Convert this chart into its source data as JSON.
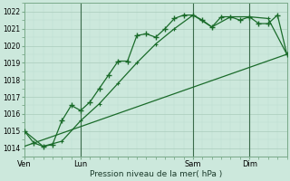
{
  "bg_color": "#cce8dc",
  "grid_color_major": "#aaccbc",
  "grid_color_minor": "#bbddd0",
  "line_color": "#1a6b2a",
  "title": "Pression niveau de la mer( hPa )",
  "ylim": [
    1013.5,
    1022.5
  ],
  "yticks": [
    1014,
    1015,
    1016,
    1017,
    1018,
    1019,
    1020,
    1021,
    1022
  ],
  "day_labels": [
    "Ven",
    "Lun",
    "Sam",
    "Dim"
  ],
  "day_positions": [
    0,
    3,
    9,
    12
  ],
  "vline_positions": [
    3,
    9,
    12
  ],
  "xlim": [
    0,
    14
  ],
  "series1_x": [
    0,
    0.5,
    1,
    1.5,
    2,
    2.5,
    3,
    3.5,
    4,
    4.5,
    5,
    5.5,
    6,
    6.5,
    7,
    7.5,
    8,
    8.5,
    9,
    9.5,
    10,
    10.5,
    11,
    11.5,
    12,
    12.5,
    13,
    13.5,
    14
  ],
  "series1_y": [
    1015.0,
    1014.3,
    1014.1,
    1014.2,
    1015.6,
    1016.5,
    1016.2,
    1016.7,
    1017.5,
    1018.3,
    1019.1,
    1019.1,
    1020.6,
    1020.7,
    1020.5,
    1021.0,
    1021.6,
    1021.8,
    1021.8,
    1021.5,
    1021.1,
    1021.7,
    1021.7,
    1021.5,
    1021.7,
    1021.3,
    1021.3,
    1021.8,
    1019.5
  ],
  "series2_x": [
    0,
    1,
    2,
    3,
    4,
    5,
    6,
    7,
    8,
    9,
    10,
    11,
    12,
    13,
    14
  ],
  "series2_y": [
    1015.0,
    1014.1,
    1014.4,
    1015.6,
    1016.6,
    1017.8,
    1019.0,
    1020.1,
    1021.0,
    1021.8,
    1021.1,
    1021.7,
    1021.7,
    1021.6,
    1019.5
  ],
  "series3_x": [
    0,
    14
  ],
  "series3_y": [
    1014.1,
    1019.5
  ]
}
